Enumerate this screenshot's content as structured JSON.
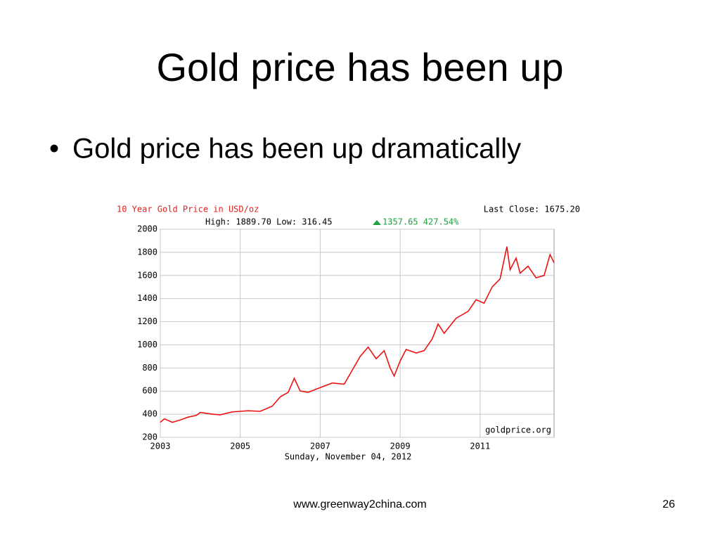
{
  "slide": {
    "title": "Gold price has been up",
    "bullet": "Gold price has been up dramatically",
    "footer": "www.greenway2china.com",
    "page_number": "26"
  },
  "chart_data": {
    "type": "line",
    "title": "10 Year Gold Price in USD/oz",
    "last_close": "Last Close: 1675.20",
    "high_low": "High: 1889.70 Low: 316.45",
    "change": "1357.65 427.54%",
    "source": "goldprice.org",
    "date_label": "Sunday, November 04, 2012",
    "x": [
      2003.0,
      2003.1,
      2003.3,
      2003.5,
      2003.7,
      2003.9,
      2004.0,
      2004.3,
      2004.5,
      2004.8,
      2005.0,
      2005.2,
      2005.5,
      2005.8,
      2006.0,
      2006.2,
      2006.35,
      2006.5,
      2006.7,
      2007.0,
      2007.3,
      2007.6,
      2007.8,
      2008.0,
      2008.2,
      2008.4,
      2008.6,
      2008.75,
      2008.85,
      2009.0,
      2009.15,
      2009.4,
      2009.6,
      2009.8,
      2009.95,
      2010.1,
      2010.4,
      2010.7,
      2010.9,
      2011.1,
      2011.3,
      2011.5,
      2011.67,
      2011.75,
      2011.9,
      2012.0,
      2012.2,
      2012.4,
      2012.6,
      2012.75,
      2012.85
    ],
    "values": [
      330,
      360,
      330,
      350,
      375,
      390,
      415,
      400,
      395,
      420,
      425,
      430,
      425,
      470,
      550,
      590,
      710,
      600,
      590,
      630,
      670,
      660,
      780,
      900,
      980,
      880,
      950,
      800,
      730,
      860,
      960,
      930,
      950,
      1050,
      1180,
      1100,
      1230,
      1290,
      1390,
      1360,
      1500,
      1570,
      1850,
      1650,
      1750,
      1620,
      1680,
      1580,
      1600,
      1780,
      1710
    ],
    "color": "#ee1111",
    "xlim": [
      2003,
      2012.85
    ],
    "xticks": [
      2003,
      2005,
      2007,
      2009,
      2011
    ],
    "ylim": [
      200,
      2000
    ],
    "yticks": [
      200,
      400,
      600,
      800,
      1000,
      1200,
      1400,
      1600,
      1800,
      2000
    ],
    "grid": true
  }
}
